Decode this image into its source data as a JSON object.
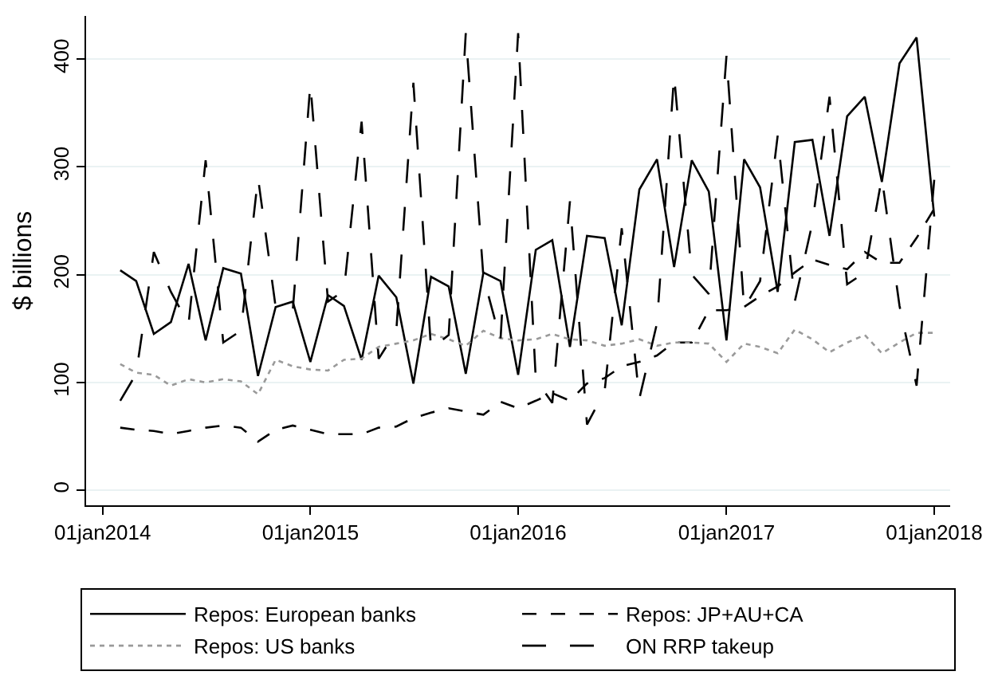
{
  "chart_data": {
    "type": "line",
    "ylabel": "$ billions",
    "x": [
      "2014-02",
      "2014-03",
      "2014-04",
      "2014-05",
      "2014-06",
      "2014-07",
      "2014-08",
      "2014-09",
      "2014-10",
      "2014-11",
      "2014-12",
      "2015-01",
      "2015-02",
      "2015-03",
      "2015-04",
      "2015-05",
      "2015-06",
      "2015-07",
      "2015-08",
      "2015-09",
      "2015-10",
      "2015-11",
      "2015-12",
      "2016-01",
      "2016-02",
      "2016-03",
      "2016-04",
      "2016-05",
      "2016-06",
      "2016-07",
      "2016-08",
      "2016-09",
      "2016-10",
      "2016-11",
      "2016-12",
      "2017-01",
      "2017-02",
      "2017-03",
      "2017-04",
      "2017-05",
      "2017-06",
      "2017-07",
      "2017-08",
      "2017-09",
      "2017-10",
      "2017-11",
      "2017-12",
      "2018-01"
    ],
    "series": [
      {
        "name": "Repos: European banks",
        "color": "#000000",
        "line_style": "solid",
        "values": [
          204,
          194,
          145,
          156,
          210,
          139,
          206,
          201,
          106,
          170,
          175,
          119,
          181,
          171,
          121,
          199,
          179,
          99,
          198,
          189,
          108,
          202,
          194,
          107,
          223,
          232,
          133,
          236,
          234,
          153,
          279,
          307,
          207,
          306,
          277,
          139,
          307,
          281,
          184,
          323,
          325,
          236,
          347,
          365,
          286,
          396,
          420,
          254
        ]
      },
      {
        "name": "Repos: JP+AU+CA",
        "color": "#000000",
        "line_style": "dashed",
        "values": [
          58,
          56,
          55,
          52,
          55,
          58,
          60,
          58,
          45,
          56,
          60,
          56,
          52,
          52,
          52,
          58,
          59,
          67,
          72,
          76,
          73,
          70,
          82,
          76,
          83,
          90,
          83,
          99,
          104,
          115,
          119,
          125,
          137,
          137,
          167,
          167,
          170,
          180,
          189,
          202,
          214,
          209,
          205,
          221,
          211,
          211,
          234,
          261
        ]
      },
      {
        "name": "Repos: US banks",
        "color": "#9a9a9a",
        "line_style": "dotted",
        "values": [
          117,
          109,
          107,
          97,
          103,
          100,
          103,
          101,
          89,
          121,
          115,
          112,
          111,
          121,
          122,
          133,
          136,
          139,
          145,
          140,
          134,
          148,
          141,
          139,
          140,
          145,
          140,
          139,
          134,
          136,
          140,
          134,
          137,
          137,
          136,
          119,
          136,
          133,
          127,
          149,
          140,
          128,
          137,
          144,
          127,
          137,
          146,
          146
        ]
      },
      {
        "name": "ON RRP takeup",
        "color": "#000000",
        "line_style": "longdashed",
        "values": [
          83,
          108,
          221,
          184,
          154,
          306,
          137,
          148,
          290,
          170,
          166,
          377,
          175,
          185,
          342,
          122,
          148,
          378,
          131,
          144,
          424,
          198,
          139,
          424,
          103,
          81,
          268,
          61,
          92,
          243,
          85,
          155,
          385,
          200,
          182,
          403,
          169,
          194,
          329,
          175,
          248,
          365,
          191,
          202,
          290,
          171,
          97,
          288
        ]
      }
    ],
    "xlim": [
      "2013-12-03",
      "2018-01-29"
    ],
    "xticks": [
      {
        "value": "2014-01-01",
        "label": "01jan2014"
      },
      {
        "value": "2015-01-01",
        "label": "01jan2015"
      },
      {
        "value": "2016-01-01",
        "label": "01jan2016"
      },
      {
        "value": "2017-01-01",
        "label": "01jan2017"
      },
      {
        "value": "2018-01-01",
        "label": "01jan2018"
      }
    ],
    "ylim": [
      -14,
      440
    ],
    "yticks": [
      0,
      100,
      200,
      300,
      400
    ],
    "grid": "y",
    "legend": "bottom",
    "marker": "none"
  }
}
